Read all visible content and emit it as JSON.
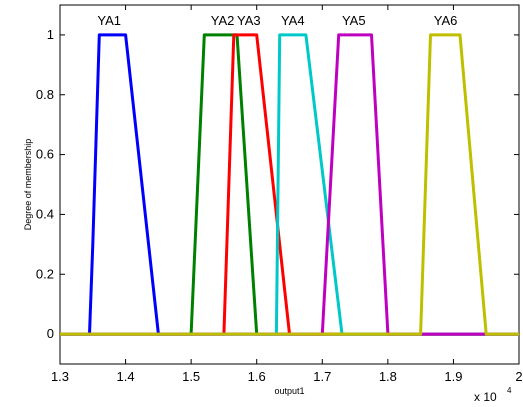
{
  "chart_data": {
    "type": "line",
    "xlabel": "output1",
    "ylabel": "Degree of membership",
    "x_multiplier": {
      "base": "x 10",
      "exponent": "4"
    },
    "xlim": [
      1.3,
      2.0
    ],
    "ylim": [
      -0.1,
      1.1
    ],
    "xticks": [
      "1.3",
      "1.4",
      "1.5",
      "1.6",
      "1.7",
      "1.8",
      "1.9",
      "2"
    ],
    "yticks": [
      "0",
      "0.2",
      "0.4",
      "0.6",
      "0.8",
      "1"
    ],
    "grid": false,
    "series": [
      {
        "name": "YA1",
        "color": "#0000ff",
        "x": [
          1.3,
          1.345,
          1.35,
          1.36,
          1.4,
          1.45,
          2.0
        ],
        "y": [
          0,
          0,
          0.3,
          1,
          1,
          0,
          0
        ]
      },
      {
        "name": "YA2",
        "color": "#008000",
        "x": [
          1.3,
          1.5,
          1.52,
          1.57,
          1.6,
          2.0
        ],
        "y": [
          0,
          0,
          1,
          1,
          0,
          0
        ]
      },
      {
        "name": "YA3",
        "color": "#ff0000",
        "x": [
          1.3,
          1.55,
          1.565,
          1.6,
          1.65,
          2.0
        ],
        "y": [
          0,
          0,
          1,
          1,
          0,
          0
        ]
      },
      {
        "name": "YA4",
        "color": "#00c8c8",
        "x": [
          1.3,
          1.63,
          1.635,
          1.675,
          1.73,
          2.0
        ],
        "y": [
          0,
          0,
          1,
          1,
          0,
          0
        ]
      },
      {
        "name": "YA5",
        "color": "#c000c0",
        "x": [
          1.3,
          1.7,
          1.725,
          1.775,
          1.8,
          2.0
        ],
        "y": [
          0,
          0,
          1,
          1,
          0,
          0
        ]
      },
      {
        "name": "YA6",
        "color": "#bfbf00",
        "x": [
          1.3,
          1.85,
          1.865,
          1.91,
          1.95,
          2.0
        ],
        "y": [
          0,
          0,
          1,
          1,
          0,
          0
        ]
      }
    ],
    "annotations": [
      {
        "text": "YA1",
        "x": 1.375,
        "y": 1.05
      },
      {
        "text": "YA2",
        "x": 1.548,
        "y": 1.05
      },
      {
        "text": "YA3",
        "x": 1.588,
        "y": 1.05
      },
      {
        "text": "YA4",
        "x": 1.655,
        "y": 1.05
      },
      {
        "text": "YA5",
        "x": 1.748,
        "y": 1.05
      },
      {
        "text": "YA6",
        "x": 1.888,
        "y": 1.05
      }
    ]
  }
}
